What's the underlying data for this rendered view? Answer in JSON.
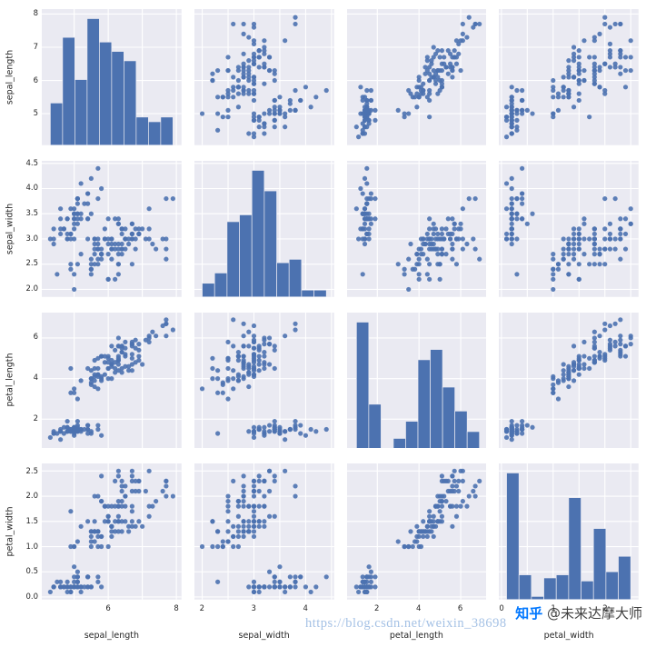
{
  "watermark": {
    "zhihu_logo": "知乎",
    "zhihu_handle": "@未来达摩大师",
    "url": "https://blog.csdn.net/weixin_38698"
  },
  "chart_data": {
    "type": "scatter_matrix",
    "title": "",
    "diagonal": "histogram",
    "grid": true,
    "legend": false,
    "n_points": 150,
    "hist_bins": 10,
    "variables": [
      "sepal_length",
      "sepal_width",
      "petal_length",
      "petal_width"
    ],
    "style": {
      "axes_bg": "#eaeaf2",
      "grid_color": "#ffffff",
      "dot_color": "#4c72b0",
      "bar_color": "#4c72b0",
      "text_color": "#262626"
    },
    "axes": {
      "sepal_length": {
        "min": 4.05,
        "max": 8.15,
        "grid": [
          5,
          6,
          7,
          8
        ],
        "ytick_vals": [
          5,
          6,
          7,
          8
        ],
        "ytick_labels": [
          "5",
          "6",
          "7",
          "8"
        ],
        "xtick_vals": [
          6,
          8
        ],
        "xtick_labels": [
          "6",
          "8"
        ]
      },
      "sepal_width": {
        "min": 1.85,
        "max": 4.55,
        "grid": [
          2,
          2.5,
          3,
          3.5,
          4,
          4.5
        ],
        "ytick_vals": [
          2,
          2.5,
          3,
          3.5,
          4,
          4.5
        ],
        "ytick_labels": [
          "2.0",
          "2.5",
          "3.0",
          "3.5",
          "4.0",
          "4.5"
        ],
        "xtick_vals": [
          2,
          3,
          4
        ],
        "xtick_labels": [
          "2",
          "3",
          "4"
        ]
      },
      "petal_length": {
        "min": 0.55,
        "max": 7.25,
        "grid": [
          2,
          4,
          6
        ],
        "ytick_vals": [
          2,
          4,
          6
        ],
        "ytick_labels": [
          "2",
          "4",
          "6"
        ],
        "xtick_vals": [
          2,
          4,
          6
        ],
        "xtick_labels": [
          "2",
          "4",
          "6"
        ]
      },
      "petal_width": {
        "min": -0.05,
        "max": 2.65,
        "grid": [
          0,
          0.5,
          1,
          1.5,
          2,
          2.5
        ],
        "ytick_vals": [
          0,
          0.5,
          1,
          1.5,
          2,
          2.5
        ],
        "ytick_labels": [
          "0.0",
          "0.5",
          "1.0",
          "1.5",
          "2.0",
          "2.5"
        ],
        "xtick_vals": [
          0,
          1,
          2
        ],
        "xtick_labels": [
          "0",
          "1",
          "2"
        ]
      }
    },
    "data": {
      "sepal_length": [
        5.1,
        4.9,
        4.7,
        4.6,
        5.0,
        5.4,
        4.6,
        5.0,
        4.4,
        4.9,
        5.4,
        4.8,
        4.8,
        4.3,
        5.8,
        5.7,
        5.4,
        5.1,
        5.7,
        5.1,
        5.4,
        5.1,
        4.6,
        5.1,
        4.8,
        5.0,
        5.0,
        5.2,
        5.2,
        4.7,
        4.8,
        5.4,
        5.2,
        5.5,
        4.9,
        5.0,
        5.5,
        4.9,
        4.4,
        5.1,
        5.0,
        4.5,
        4.4,
        5.0,
        5.1,
        4.8,
        5.1,
        4.6,
        5.3,
        5.0,
        7.0,
        6.4,
        6.9,
        5.5,
        6.5,
        5.7,
        6.3,
        4.9,
        6.6,
        5.2,
        5.0,
        5.9,
        6.0,
        6.1,
        5.6,
        6.7,
        5.6,
        5.8,
        6.2,
        5.6,
        5.9,
        6.1,
        6.3,
        6.1,
        6.4,
        6.6,
        6.8,
        6.7,
        6.0,
        5.7,
        5.5,
        5.5,
        5.8,
        6.0,
        5.4,
        6.0,
        6.7,
        6.3,
        5.6,
        5.5,
        5.5,
        6.1,
        5.8,
        5.0,
        5.6,
        5.7,
        5.7,
        6.2,
        5.1,
        5.7,
        6.3,
        5.8,
        7.1,
        6.3,
        6.5,
        7.6,
        4.9,
        7.3,
        6.7,
        7.2,
        6.5,
        6.4,
        6.8,
        5.7,
        5.8,
        6.4,
        6.5,
        7.7,
        7.7,
        6.0,
        6.9,
        5.6,
        7.7,
        6.3,
        6.7,
        7.2,
        6.2,
        6.1,
        6.4,
        7.2,
        7.4,
        7.9,
        6.4,
        6.3,
        6.1,
        7.7,
        6.3,
        6.4,
        6.0,
        6.9,
        6.7,
        6.9,
        5.8,
        6.8,
        6.7,
        6.7,
        6.3,
        6.5,
        6.2,
        5.9
      ],
      "sepal_width": [
        3.5,
        3.0,
        3.2,
        3.1,
        3.6,
        3.9,
        3.4,
        3.4,
        2.9,
        3.1,
        3.7,
        3.4,
        3.0,
        3.0,
        4.0,
        4.4,
        3.9,
        3.5,
        3.8,
        3.8,
        3.4,
        3.7,
        3.6,
        3.3,
        3.4,
        3.0,
        3.4,
        3.5,
        3.4,
        3.2,
        3.1,
        3.4,
        4.1,
        4.2,
        3.1,
        3.2,
        3.5,
        3.6,
        3.0,
        3.4,
        3.5,
        2.3,
        3.2,
        3.5,
        3.8,
        3.0,
        3.8,
        3.2,
        3.7,
        3.3,
        3.2,
        3.2,
        3.1,
        2.3,
        2.8,
        2.8,
        3.3,
        2.4,
        2.9,
        2.7,
        2.0,
        3.0,
        2.2,
        2.9,
        2.9,
        3.1,
        3.0,
        2.7,
        2.2,
        2.5,
        3.2,
        2.8,
        2.5,
        2.8,
        2.9,
        3.0,
        2.8,
        3.0,
        2.9,
        2.6,
        2.4,
        2.4,
        2.7,
        2.7,
        3.0,
        3.4,
        3.1,
        2.3,
        3.0,
        2.5,
        2.6,
        3.0,
        2.6,
        2.3,
        2.7,
        3.0,
        2.9,
        2.9,
        2.5,
        2.8,
        3.3,
        2.7,
        3.0,
        2.9,
        3.0,
        3.0,
        2.5,
        2.9,
        2.5,
        3.6,
        3.2,
        2.7,
        3.0,
        2.5,
        2.8,
        3.2,
        3.0,
        3.8,
        2.6,
        2.2,
        3.2,
        2.8,
        2.8,
        2.7,
        3.3,
        3.2,
        2.8,
        3.0,
        2.8,
        3.0,
        2.8,
        3.8,
        2.8,
        2.8,
        2.6,
        3.0,
        3.4,
        3.1,
        3.0,
        3.1,
        3.1,
        3.1,
        2.7,
        3.2,
        3.3,
        3.0,
        2.5,
        3.0,
        3.4,
        3.0
      ],
      "petal_length": [
        1.4,
        1.4,
        1.3,
        1.5,
        1.4,
        1.7,
        1.4,
        1.5,
        1.4,
        1.5,
        1.5,
        1.6,
        1.4,
        1.1,
        1.2,
        1.5,
        1.3,
        1.4,
        1.7,
        1.5,
        1.7,
        1.5,
        1.0,
        1.7,
        1.9,
        1.6,
        1.6,
        1.5,
        1.4,
        1.6,
        1.6,
        1.5,
        1.5,
        1.4,
        1.5,
        1.2,
        1.3,
        1.4,
        1.3,
        1.5,
        1.3,
        1.3,
        1.3,
        1.6,
        1.9,
        1.4,
        1.6,
        1.4,
        1.5,
        1.4,
        4.7,
        4.5,
        4.9,
        4.0,
        4.6,
        4.5,
        4.7,
        3.3,
        4.6,
        3.9,
        3.5,
        4.2,
        4.0,
        4.7,
        3.6,
        4.4,
        4.5,
        4.1,
        4.5,
        3.9,
        4.8,
        4.0,
        4.9,
        4.7,
        4.3,
        4.4,
        4.8,
        5.0,
        4.5,
        3.5,
        3.8,
        3.7,
        3.9,
        5.1,
        4.5,
        4.5,
        4.7,
        4.4,
        4.1,
        4.0,
        4.4,
        4.6,
        4.0,
        3.3,
        4.2,
        4.2,
        4.2,
        4.3,
        3.0,
        4.1,
        6.0,
        5.1,
        5.9,
        5.6,
        5.8,
        6.6,
        4.5,
        6.3,
        5.8,
        6.1,
        5.1,
        5.3,
        5.5,
        5.0,
        5.1,
        5.3,
        5.5,
        6.7,
        6.9,
        5.0,
        5.7,
        4.9,
        6.7,
        4.9,
        5.7,
        6.0,
        4.8,
        4.9,
        5.6,
        5.8,
        6.1,
        6.4,
        5.6,
        5.1,
        5.6,
        6.1,
        5.6,
        5.5,
        4.8,
        5.4,
        5.6,
        5.1,
        5.1,
        5.9,
        5.7,
        5.2,
        5.0,
        5.2,
        5.4,
        5.1
      ],
      "petal_width": [
        0.2,
        0.2,
        0.2,
        0.2,
        0.2,
        0.4,
        0.3,
        0.2,
        0.2,
        0.1,
        0.2,
        0.2,
        0.1,
        0.1,
        0.2,
        0.4,
        0.4,
        0.3,
        0.3,
        0.3,
        0.2,
        0.4,
        0.2,
        0.5,
        0.2,
        0.2,
        0.4,
        0.2,
        0.2,
        0.2,
        0.2,
        0.4,
        0.1,
        0.2,
        0.2,
        0.2,
        0.2,
        0.1,
        0.2,
        0.2,
        0.3,
        0.3,
        0.2,
        0.6,
        0.4,
        0.3,
        0.2,
        0.2,
        0.2,
        0.2,
        1.4,
        1.5,
        1.5,
        1.3,
        1.5,
        1.3,
        1.6,
        1.0,
        1.3,
        1.4,
        1.0,
        1.5,
        1.0,
        1.4,
        1.3,
        1.4,
        1.5,
        1.0,
        1.5,
        1.1,
        1.8,
        1.3,
        1.5,
        1.2,
        1.3,
        1.4,
        1.4,
        1.7,
        1.5,
        1.0,
        1.1,
        1.0,
        1.2,
        1.6,
        1.5,
        1.6,
        1.5,
        1.3,
        1.3,
        1.3,
        1.2,
        1.4,
        1.2,
        1.0,
        1.3,
        1.2,
        1.3,
        1.3,
        1.1,
        1.3,
        2.5,
        1.9,
        2.1,
        1.8,
        2.2,
        2.1,
        1.7,
        1.8,
        1.8,
        2.5,
        2.0,
        1.9,
        2.1,
        2.0,
        2.4,
        2.3,
        1.8,
        2.2,
        2.3,
        1.5,
        2.3,
        2.0,
        2.0,
        1.8,
        2.1,
        1.8,
        1.8,
        1.8,
        2.1,
        1.6,
        1.9,
        2.0,
        2.2,
        1.5,
        1.4,
        2.3,
        2.4,
        1.8,
        1.8,
        2.1,
        2.4,
        2.3,
        1.9,
        2.3,
        2.5,
        2.3,
        1.9,
        2.0,
        2.3,
        1.8
      ]
    }
  }
}
